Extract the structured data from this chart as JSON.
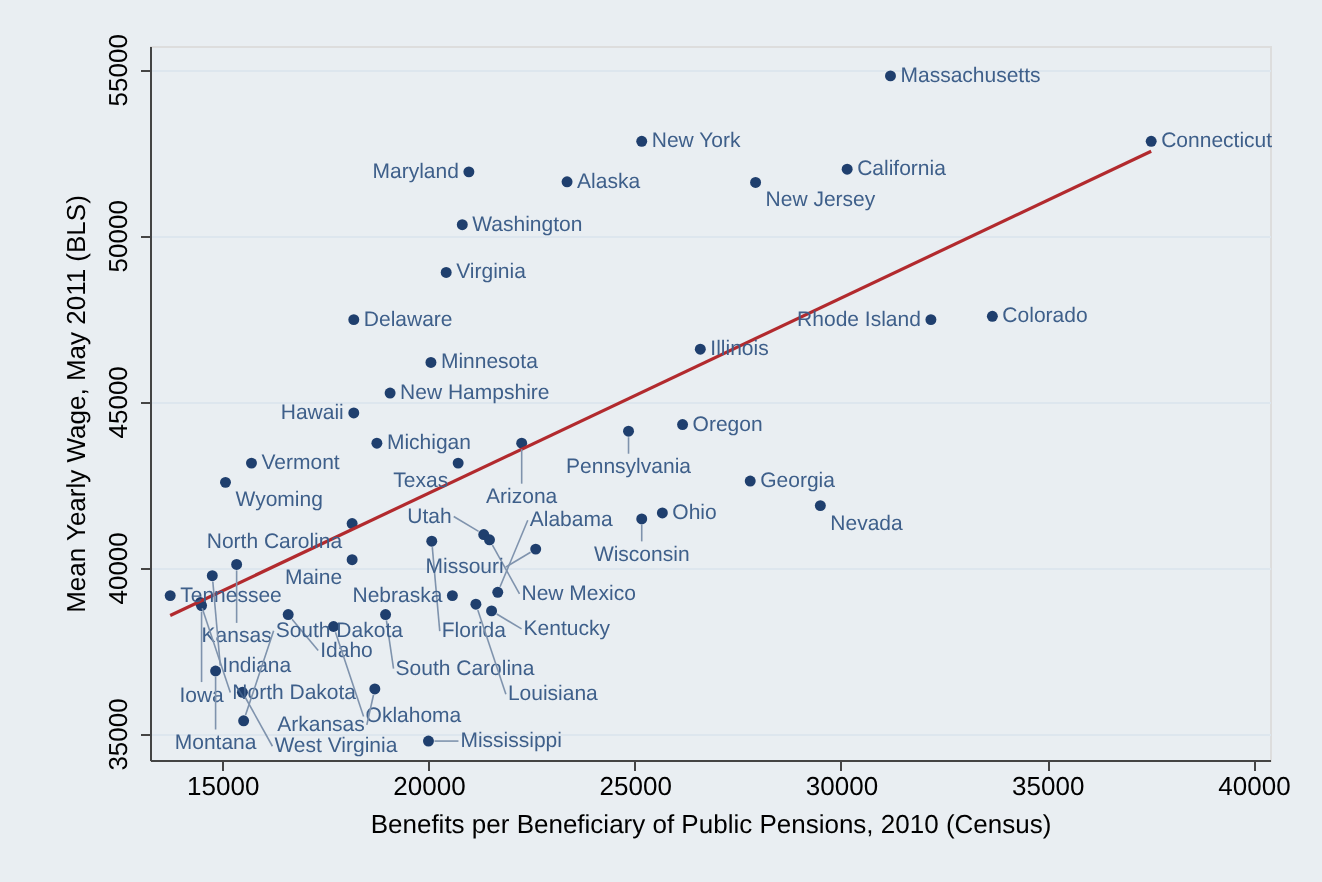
{
  "chart_data": {
    "type": "scatter",
    "xlabel": "Benefits per Beneficiary of Public Pensions, 2010 (Census)",
    "ylabel": "Mean Yearly Wage, May 2011 (BLS)",
    "xlim": [
      13250,
      40400
    ],
    "xticks": [
      15000,
      20000,
      25000,
      30000,
      35000,
      40000
    ],
    "ylim": [
      34200,
      55700
    ],
    "yticks": [
      35000,
      40000,
      45000,
      50000,
      55000
    ],
    "grid": "y",
    "marker": "circle",
    "series": [
      {
        "color": "#1f3f6e",
        "x": [
          31200,
          37520,
          25170,
          30150,
          20980,
          23360,
          27930,
          20820,
          20430,
          18190,
          32180,
          33670,
          26590,
          20060,
          19070,
          18190,
          26160,
          24850,
          18750,
          22260,
          20720,
          15710,
          15080,
          27800,
          29500,
          25670,
          25170,
          18150,
          21340,
          21480,
          20080,
          22600,
          18150,
          15350,
          14760,
          13740,
          14500,
          14470,
          16600,
          17700,
          18960,
          20580,
          21680,
          21150,
          21530,
          14840,
          15490,
          18700,
          15520,
          20000
        ],
        "values": [
          54800,
          52830,
          52830,
          51990,
          51910,
          51610,
          51590,
          50320,
          48880,
          47460,
          47460,
          47560,
          46570,
          46170,
          45250,
          44650,
          44300,
          44100,
          43740,
          43740,
          43140,
          43140,
          42560,
          42600,
          41860,
          41640,
          41460,
          41320,
          40990,
          40830,
          40790,
          40550,
          40230,
          40090,
          39750,
          39150,
          38850,
          38940,
          38580,
          38220,
          38580,
          39150,
          39250,
          38890,
          38690,
          36880,
          36240,
          36340,
          35380,
          34770
        ]
      },
      {
        "type": "line",
        "color": "#b22a2e",
        "line_style": "solid",
        "marker": "none",
        "x": [
          13740,
          37520
        ],
        "values": [
          38550,
          52530
        ]
      }
    ],
    "annotations": [
      {
        "text": "Massachusetts",
        "x": 31200,
        "y": 54800
      },
      {
        "text": "Connecticut",
        "x": 37520,
        "y": 52830
      },
      {
        "text": "New York",
        "x": 25170,
        "y": 52830
      },
      {
        "text": "California",
        "x": 30150,
        "y": 51990
      },
      {
        "text": "Maryland",
        "x": 20980,
        "y": 51910
      },
      {
        "text": "Alaska",
        "x": 23360,
        "y": 51610
      },
      {
        "text": "New Jersey",
        "x": 27930,
        "y": 51590
      },
      {
        "text": "Washington",
        "x": 20820,
        "y": 50320
      },
      {
        "text": "Virginia",
        "x": 20430,
        "y": 48880
      },
      {
        "text": "Delaware",
        "x": 18190,
        "y": 47460
      },
      {
        "text": "Rhode Island",
        "x": 32180,
        "y": 47460
      },
      {
        "text": "Colorado",
        "x": 33670,
        "y": 47560
      },
      {
        "text": "Illinois",
        "x": 26590,
        "y": 46570
      },
      {
        "text": "Minnesota",
        "x": 20060,
        "y": 46170
      },
      {
        "text": "New Hampshire",
        "x": 19070,
        "y": 45250
      },
      {
        "text": "Hawaii",
        "x": 18190,
        "y": 44650
      },
      {
        "text": "Oregon",
        "x": 26160,
        "y": 44300
      },
      {
        "text": "Pennsylvania",
        "x": 24850,
        "y": 44100
      },
      {
        "text": "Michigan",
        "x": 18750,
        "y": 43740
      },
      {
        "text": "Arizona",
        "x": 22260,
        "y": 43740
      },
      {
        "text": "Texas",
        "x": 20720,
        "y": 43140
      },
      {
        "text": "Vermont",
        "x": 15710,
        "y": 43140
      },
      {
        "text": "Wyoming",
        "x": 15080,
        "y": 42560
      },
      {
        "text": "Georgia",
        "x": 27800,
        "y": 42600
      },
      {
        "text": "Nevada",
        "x": 29500,
        "y": 41860
      },
      {
        "text": "Ohio",
        "x": 25670,
        "y": 41640
      },
      {
        "text": "Wisconsin",
        "x": 25170,
        "y": 41460
      },
      {
        "text": "North Carolina",
        "x": 18150,
        "y": 41320
      },
      {
        "text": "Utah",
        "x": 21340,
        "y": 40990
      },
      {
        "text": "New Mexico",
        "x": 21480,
        "y": 40830
      },
      {
        "text": "Florida",
        "x": 20080,
        "y": 40790
      },
      {
        "text": "Missouri",
        "x": 22600,
        "y": 40550
      },
      {
        "text": "Maine",
        "x": 18150,
        "y": 40230
      },
      {
        "text": "Kansas",
        "x": 15350,
        "y": 40090
      },
      {
        "text": "Indiana",
        "x": 14760,
        "y": 39750
      },
      {
        "text": "Tennessee",
        "x": 13740,
        "y": 39150
      },
      {
        "text": "Iowa",
        "x": 14500,
        "y": 38850
      },
      {
        "text": "North Dakota",
        "x": 14470,
        "y": 38940
      },
      {
        "text": "Idaho",
        "x": 16600,
        "y": 38580
      },
      {
        "text": "Oklahoma",
        "x": 17700,
        "y": 38220
      },
      {
        "text": "South Carolina",
        "x": 18960,
        "y": 38580
      },
      {
        "text": "Nebraska",
        "x": 20580,
        "y": 39150
      },
      {
        "text": "Alabama",
        "x": 21680,
        "y": 39250
      },
      {
        "text": "Louisiana",
        "x": 21150,
        "y": 38890
      },
      {
        "text": "Kentucky",
        "x": 21530,
        "y": 38690
      },
      {
        "text": "Montana",
        "x": 14840,
        "y": 36880
      },
      {
        "text": "West Virginia",
        "x": 15490,
        "y": 36240
      },
      {
        "text": "Arkansas",
        "x": 18700,
        "y": 36340
      },
      {
        "text": "South Dakota",
        "x": 15520,
        "y": 35380
      },
      {
        "text": "Mississippi",
        "x": 20000,
        "y": 34770
      }
    ]
  }
}
